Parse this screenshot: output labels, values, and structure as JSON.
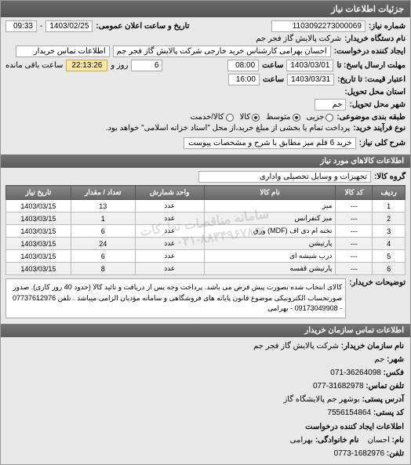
{
  "header": {
    "title": "جزئیات اطلاعات نیاز"
  },
  "top": {
    "req_no_label": "شماره نیاز:",
    "req_no": "1103092273000069",
    "pub_datetime_label": "تاریخ و ساعت اعلان عمومی:",
    "pub_date": "1403/02/25",
    "pub_time": "09:33",
    "sep": " - ",
    "buyer_unit_label": "نام دستگاه خریدار:",
    "buyer_unit": "شرکت پالایش گاز فجر جم",
    "creator_label": "ایجاد کننده درخواست:",
    "creator": "احسان بهرامی کارشناس خرید خارجی شرکت پالایش گاز فجر جم",
    "contact_label": "اطلاعات تماس خریدار",
    "deadline_label": "مهلت ارسال پاسخ: تا",
    "deadline_date": "1403/03/01",
    "time_label": "ساعت",
    "deadline_time": "08:00",
    "remain_days_val": "6",
    "remain_days_label": "روز و",
    "remain_time": "22:13:26",
    "remain_suffix": "ساعت باقی مانده",
    "validity_label": "اعتبار قیمت: تا تاریخ:",
    "validity_date": "1403/03/31",
    "validity_time": "16:00",
    "delivery_state_label": "استان محل تحویل:",
    "delivery_city_label": "شهر محل تحویل:",
    "delivery_city": "جم",
    "subject_class_label": "طبقه بندی موضوعی:",
    "radios": {
      "partial": "جزیی",
      "medium": "متوسط",
      "goods": "کالا",
      "goods_service": "کالا/خدمت"
    },
    "pay_type_label": "نوع فرآیند خرید:",
    "pay_type_note": "پرداخت تمام یا بخشی از مبلغ خرید،از محل \"اسناد خزانه اسلامی\" خواهد بود.",
    "need_title_label": "شرح کلی نیاز:",
    "need_title": "خرید 6 قلم میز مطابق با شرح و مشخصات پیوست"
  },
  "items_section": {
    "title": "اطلاعات کالاهای مورد نیاز",
    "group_label": "گروه کالا:",
    "group": "تجهیزات و وسایل تحصیلی واداری",
    "columns": [
      "ردیف",
      "کد کالا",
      "نام کالا",
      "واحد شمارش",
      "تعداد / مقدار",
      "تاریخ نیاز"
    ],
    "rows": [
      [
        "1",
        "---",
        "میز",
        "عدد",
        "13",
        "1403/03/15"
      ],
      [
        "2",
        "---",
        "میز کنفرانس",
        "عدد",
        "1",
        "1403/03/15"
      ],
      [
        "3",
        "---",
        "تخته ام دی اف (MDF) ورق",
        "عدد",
        "6",
        "1403/03/15"
      ],
      [
        "4",
        "---",
        "پارتیشن",
        "عدد",
        "24",
        "1403/03/15"
      ],
      [
        "5",
        "---",
        "درب شیشه ای",
        "عدد",
        "6",
        "1403/03/15"
      ],
      [
        "6",
        "---",
        "پارتیشن قفسه",
        "عدد",
        "8",
        "1403/03/15"
      ]
    ],
    "watermark": "سامانه مناقصات تدارکات",
    "watermark2": "۰۲۱-۸۸۳۴۹۶۷۸-۲۰",
    "buyer_note_label": "توضیحات خریدار:",
    "buyer_note": "کالای انتخاب شده بصورت پیش فرض می باشد. پرداخت وجه پس از دریافت و تائید کالا (حدود 40 روز کاری). صدور صورتحساب الکترونیکی موضوع قانون پایانه های فروشگاهی و سامانه مؤدیان الزامی میباشد . تلفن 07737612976 - 09173049908 - بهرامی"
  },
  "contact_section": {
    "title": "اطلاعات تماس سازمان خریدار",
    "org_label": "نام سازمان خریدار:",
    "org": "شرکت پالایش گاز فجر جم",
    "city_label": "شهر:",
    "city": "جم",
    "fax_label": "فکس:",
    "fax": "36264098-071",
    "phone_label": "تلفن تماس:",
    "phone": "31682978-077",
    "address_label": "آدرس پستی:",
    "address": "بوشهر جم پالایشگاه گاز",
    "postcode_label": "کد پستی:",
    "postcode": "7556154864",
    "creator_section_label": "اطلاعات ایجاد کننده درخواست",
    "name_label": "نام:",
    "name": "احسان",
    "family_label": "نام خانوادگی:",
    "family": "بهرامی",
    "phone2_label": "تلفن:",
    "phone2": "1682976-0773"
  }
}
